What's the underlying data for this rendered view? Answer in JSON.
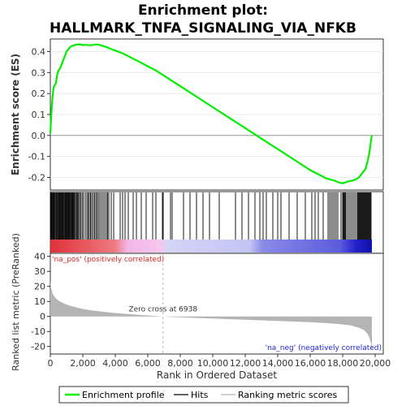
{
  "title_line1": "Enrichment plot:",
  "title_line2": "HALLMARK_TNFA_SIGNALING_VIA_NFKB",
  "colors": {
    "es_line": "#00ee00",
    "hits": "#000000",
    "metric_fill": "#b4b4b4",
    "pos_label": "#dd2222",
    "neg_label": "#2222dd",
    "zero_line": "#aaaaaa"
  },
  "chart_data": [
    {
      "type": "line",
      "name": "enrichment-score",
      "ylabel": "Enrichment score (ES)",
      "ylim": [
        -0.26,
        0.46
      ],
      "yticks": [
        -0.2,
        -0.1,
        0.0,
        0.1,
        0.2,
        0.3,
        0.4
      ],
      "ytick_labels": [
        "-0.2",
        "-0.1",
        "0.0",
        "0.1",
        "0.2",
        "0.3",
        "0.4"
      ],
      "xlim": [
        0,
        20500
      ],
      "grid": true,
      "series": [
        {
          "name": "Enrichment profile",
          "x": [
            0,
            60,
            120,
            200,
            280,
            350,
            420,
            500,
            600,
            700,
            800,
            900,
            1000,
            1100,
            1200,
            1300,
            1450,
            1600,
            1800,
            2000,
            2200,
            2500,
            2800,
            3000,
            3200,
            3500,
            3800,
            4000,
            4500,
            5000,
            5500,
            6000,
            6500,
            7000,
            7500,
            8000,
            8500,
            9000,
            9500,
            10000,
            10500,
            11000,
            11500,
            12000,
            12500,
            13000,
            13500,
            14000,
            14500,
            15000,
            15500,
            16000,
            16500,
            17000,
            17500,
            17800,
            18000,
            18300,
            18600,
            18800,
            19000,
            19200,
            19400,
            19550,
            19650,
            19720,
            19770,
            19800
          ],
          "y": [
            0.01,
            0.1,
            0.17,
            0.23,
            0.24,
            0.25,
            0.29,
            0.31,
            0.32,
            0.34,
            0.36,
            0.38,
            0.4,
            0.41,
            0.42,
            0.425,
            0.43,
            0.433,
            0.435,
            0.431,
            0.432,
            0.43,
            0.434,
            0.432,
            0.428,
            0.42,
            0.41,
            0.405,
            0.39,
            0.37,
            0.35,
            0.33,
            0.31,
            0.285,
            0.26,
            0.235,
            0.21,
            0.185,
            0.16,
            0.135,
            0.11,
            0.085,
            0.06,
            0.035,
            0.01,
            -0.015,
            -0.04,
            -0.065,
            -0.09,
            -0.115,
            -0.14,
            -0.165,
            -0.185,
            -0.205,
            -0.215,
            -0.225,
            -0.228,
            -0.22,
            -0.215,
            -0.21,
            -0.2,
            -0.18,
            -0.16,
            -0.12,
            -0.08,
            -0.04,
            -0.01,
            0.0
          ]
        }
      ]
    },
    {
      "type": "hits",
      "name": "hits",
      "legend_label": "Hits",
      "hit_ranks": [
        20,
        50,
        90,
        130,
        170,
        210,
        240,
        290,
        340,
        380,
        420,
        470,
        520,
        560,
        600,
        650,
        700,
        740,
        780,
        830,
        880,
        920,
        960,
        1000,
        1050,
        1100,
        1140,
        1180,
        1230,
        1270,
        1320,
        1360,
        1400,
        1450,
        1500,
        1560,
        1620,
        1680,
        1740,
        1800,
        1880,
        1960,
        2040,
        2150,
        2250,
        2330,
        2400,
        2480,
        2550,
        2640,
        2720,
        2800,
        2880,
        2960,
        3050,
        3150,
        3250,
        3350,
        3450,
        3520,
        3600,
        3750,
        3900,
        4300,
        4450,
        4600,
        4800,
        5100,
        5300,
        5600,
        5900,
        6300,
        6500,
        6900,
        6950,
        7400,
        7500,
        8200,
        8600,
        9000,
        9400,
        9800,
        10400,
        11400,
        11800,
        12200,
        12600,
        12900,
        13100,
        13300,
        13700,
        14000,
        14200,
        14700,
        15200,
        15700,
        16100,
        16300,
        16500,
        16800,
        17100,
        17200,
        17300,
        17400,
        17500,
        17600,
        17700,
        17900,
        18000,
        18050,
        18100,
        18150,
        18200,
        18300,
        18400,
        18500,
        18600,
        18700,
        18800,
        18900,
        18950,
        19000,
        19050,
        19100,
        19150,
        19200,
        19250,
        19300,
        19350,
        19400,
        19450,
        19500,
        19550,
        19600,
        19650,
        19700,
        19750
      ]
    },
    {
      "type": "area",
      "name": "ranked-metric",
      "ylabel": "Ranked list metric (PreRanked)",
      "xlabel": "Rank in Ordered Dataset",
      "ylim": [
        -25,
        42
      ],
      "yticks": [
        -20,
        -10,
        0,
        10,
        20,
        30,
        40
      ],
      "ytick_labels": [
        "-20",
        "-10",
        "0",
        "10",
        "20",
        "30",
        "40"
      ],
      "xlim": [
        0,
        20500
      ],
      "xticks": [
        0,
        2000,
        4000,
        6000,
        8000,
        10000,
        12000,
        14000,
        16000,
        18000,
        20000
      ],
      "xtick_labels": [
        "0",
        "2,000",
        "4,000",
        "6,000",
        "8,000",
        "10,000",
        "12,000",
        "14,000",
        "16,000",
        "18,000",
        "20,000"
      ],
      "x": [
        0,
        50,
        150,
        300,
        500,
        800,
        1200,
        1600,
        2000,
        2500,
        3000,
        3500,
        4000,
        4500,
        5000,
        5500,
        6000,
        6500,
        6938,
        7500,
        8000,
        9000,
        10000,
        11000,
        12000,
        13000,
        14000,
        15000,
        16000,
        17000,
        18000,
        18500,
        19000,
        19300,
        19500,
        19650,
        19750,
        19800
      ],
      "y": [
        24,
        19,
        15,
        12.5,
        10.5,
        8.8,
        7.2,
        6.0,
        5.0,
        4.1,
        3.4,
        2.8,
        2.3,
        1.8,
        1.4,
        1.0,
        0.7,
        0.35,
        0.0,
        -0.35,
        -0.6,
        -1.0,
        -1.4,
        -1.8,
        -2.2,
        -2.6,
        -3.0,
        -3.4,
        -3.8,
        -4.4,
        -5.3,
        -6.0,
        -7.5,
        -9.0,
        -11.0,
        -14.0,
        -18.0,
        -23.0
      ],
      "zero_cross_label": "Zero cross at 6938",
      "pos_label": "'na_pos' (positively correlated)",
      "neg_label": "'na_neg' (negatively correlated)"
    }
  ],
  "legend": {
    "items": [
      {
        "label": "Enrichment profile",
        "color": "#00ee00"
      },
      {
        "label": "Hits",
        "color": "#000000"
      },
      {
        "label": "Ranking metric scores",
        "color": "#b4b4b4"
      }
    ]
  }
}
